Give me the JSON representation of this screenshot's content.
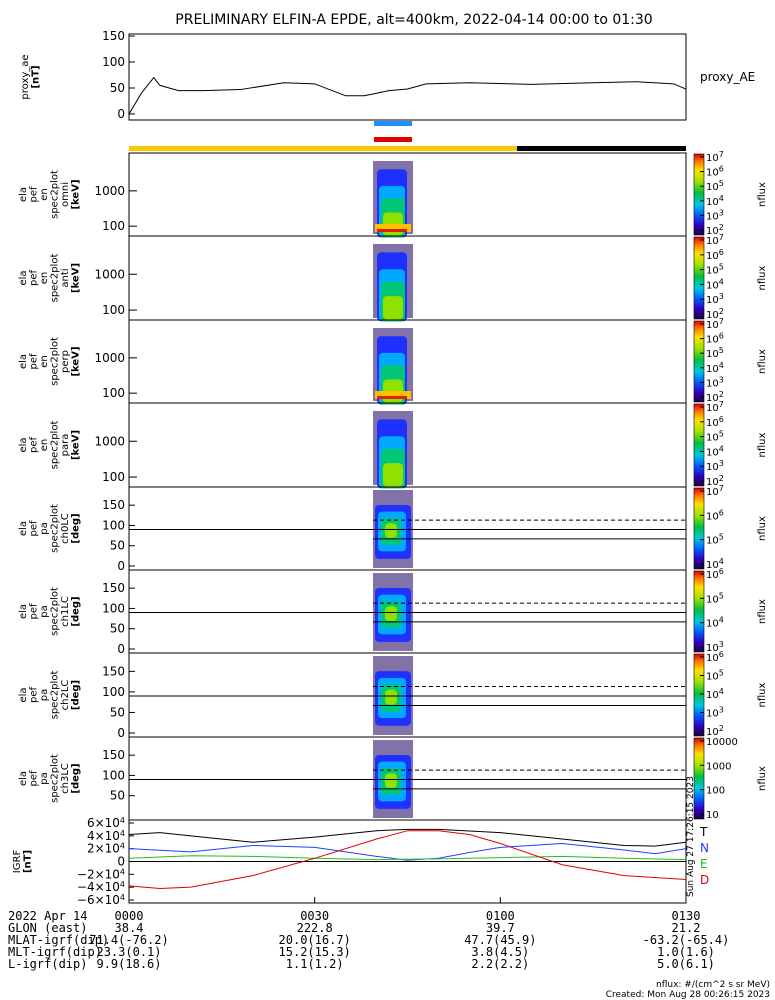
{
  "chart_data": {
    "type": "multi-panel",
    "title": "PRELIMINARY ELFIN-A EPDE, alt=400km, 2022-04-14 00:00 to 01:30",
    "time_range": [
      "00:00",
      "01:30"
    ],
    "x_ticks": [
      "0000",
      "0030",
      "0100",
      "0130"
    ],
    "panels": [
      {
        "id": "proxy_ae",
        "ylabel": [
          "proxy_ae",
          "[nT]"
        ],
        "yticks": [
          "0",
          "50",
          "100",
          "150"
        ],
        "ylim": [
          0,
          150
        ],
        "legend": "proxy_AE",
        "series": {
          "t": [
            0,
            2,
            4,
            5,
            8,
            12,
            18,
            25,
            30,
            35,
            38,
            40,
            42,
            45,
            48,
            55,
            65,
            75,
            82,
            88,
            90
          ],
          "v": [
            0,
            40,
            70,
            55,
            45,
            45,
            47,
            60,
            58,
            35,
            35,
            40,
            45,
            48,
            58,
            60,
            57,
            60,
            62,
            58,
            48
          ]
        }
      },
      {
        "id": "en_omni",
        "ylabel": [
          "ela",
          "pef",
          "en",
          "spec2plot",
          "omni",
          "[keV]"
        ],
        "yticks": [
          "100",
          "1000"
        ],
        "cblabel": "nflux",
        "cbticks": [
          "10^2",
          "10^3",
          "10^4",
          "10^5",
          "10^6",
          "10^7"
        ]
      },
      {
        "id": "en_anti",
        "ylabel": [
          "ela",
          "pef",
          "en",
          "spec2plot",
          "anti",
          "[keV]"
        ],
        "yticks": [
          "100",
          "1000"
        ],
        "cblabel": "nflux",
        "cbticks": [
          "10^2",
          "10^3",
          "10^4",
          "10^5",
          "10^6",
          "10^7"
        ]
      },
      {
        "id": "en_perp",
        "ylabel": [
          "ela",
          "pef",
          "en",
          "spec2plot",
          "perp",
          "[keV]"
        ],
        "yticks": [
          "100",
          "1000"
        ],
        "cblabel": "nflux",
        "cbticks": [
          "10^2",
          "10^3",
          "10^4",
          "10^5",
          "10^6",
          "10^7"
        ]
      },
      {
        "id": "en_para",
        "ylabel": [
          "ela",
          "pef",
          "en",
          "spec2plot",
          "para",
          "[keV]"
        ],
        "yticks": [
          "100",
          "1000"
        ],
        "cblabel": "nflux",
        "cbticks": [
          "10^2",
          "10^3",
          "10^4",
          "10^5",
          "10^6",
          "10^7"
        ]
      },
      {
        "id": "pa_ch0",
        "ylabel": [
          "ela",
          "pef",
          "pa",
          "spec2plot",
          "ch0LC",
          "[deg]"
        ],
        "yticks": [
          "0",
          "50",
          "100",
          "150"
        ],
        "cblabel": "nflux",
        "cbticks": [
          "10^4",
          "10^5",
          "10^6",
          "10^7"
        ]
      },
      {
        "id": "pa_ch1",
        "ylabel": [
          "ela",
          "pef",
          "pa",
          "spec2plot",
          "ch1LC",
          "[deg]"
        ],
        "yticks": [
          "0",
          "50",
          "100",
          "150"
        ],
        "cblabel": "nflux",
        "cbticks": [
          "10^3",
          "10^4",
          "10^5",
          "10^6"
        ]
      },
      {
        "id": "pa_ch2",
        "ylabel": [
          "ela",
          "pef",
          "pa",
          "spec2plot",
          "ch2LC",
          "[deg]"
        ],
        "yticks": [
          "0",
          "50",
          "100",
          "150"
        ],
        "cblabel": "nflux",
        "cbticks": [
          "10^2",
          "10^3",
          "10^4",
          "10^5",
          "10^6"
        ]
      },
      {
        "id": "pa_ch3",
        "ylabel": [
          "ela",
          "pef",
          "pa",
          "spec2plot",
          "ch3LC",
          "[deg]"
        ],
        "yticks": [
          "50",
          "100",
          "150"
        ],
        "cblabel": "nflux",
        "cbticks": [
          "10",
          "100",
          "1000",
          "10000"
        ]
      },
      {
        "id": "igrf",
        "ylabel": [
          "IGRF",
          "[nT]"
        ],
        "yticks": [
          "6×10^4",
          "4×10^4",
          "2×10^4",
          "0",
          "−2×10^4",
          "−4×10^4",
          "−6×10^4"
        ],
        "ylim": [
          -60000,
          60000
        ],
        "legend": [
          {
            "name": "T",
            "color": "#000000"
          },
          {
            "name": "N",
            "color": "#2040ff"
          },
          {
            "name": "E",
            "color": "#20c020"
          },
          {
            "name": "D",
            "color": "#e00000"
          }
        ],
        "series": [
          {
            "name": "T",
            "color": "#000000",
            "t": [
              0,
              5,
              10,
              20,
              30,
              40,
              45,
              50,
              60,
              70,
              80,
              85,
              90
            ],
            "v": [
              42000,
              45000,
              40000,
              30000,
              38000,
              48000,
              50000,
              50000,
              45000,
              35000,
              25000,
              24000,
              30000
            ]
          },
          {
            "name": "N",
            "color": "#2040ff",
            "t": [
              0,
              10,
              20,
              30,
              40,
              45,
              50,
              55,
              60,
              70,
              80,
              85,
              90
            ],
            "v": [
              20000,
              15000,
              25000,
              22000,
              8000,
              2000,
              5000,
              14000,
              22000,
              28000,
              18000,
              12000,
              20000
            ]
          },
          {
            "name": "E",
            "color": "#20c020",
            "t": [
              0,
              10,
              20,
              30,
              40,
              50,
              60,
              70,
              80,
              90
            ],
            "v": [
              5000,
              9000,
              8000,
              5000,
              3000,
              4000,
              6000,
              8000,
              5000,
              3000
            ]
          },
          {
            "name": "D",
            "color": "#e00000",
            "t": [
              0,
              5,
              10,
              20,
              30,
              40,
              45,
              50,
              55,
              60,
              70,
              80,
              90
            ],
            "v": [
              -38000,
              -42000,
              -40000,
              -22000,
              5000,
              35000,
              48000,
              48000,
              42000,
              28000,
              -5000,
              -22000,
              -28000
            ]
          }
        ]
      }
    ],
    "footer": {
      "rows": [
        {
          "label": "2022 Apr 14",
          "values": [
            "0000",
            "0030",
            "0100",
            "0130"
          ]
        },
        {
          "label": "GLON (east)",
          "values": [
            "38.4",
            "222.8",
            "39.7",
            "21.2"
          ]
        },
        {
          "label": "MLAT-igrf(dip)",
          "values": [
            "71.4(-76.2)",
            "20.0(16.7)",
            "47.7(45.9)",
            "-63.2(-65.4)"
          ]
        },
        {
          "label": "MLT-igrf(dip)",
          "values": [
            "23.3(0.1)",
            "15.2(15.3)",
            "3.8(4.5)",
            "1.0(1.6)"
          ]
        },
        {
          "label": "L-igrf(dip)",
          "values": [
            "9.9(18.6)",
            "1.1(1.2)",
            "2.2(2.2)",
            "5.0(6.1)"
          ]
        }
      ],
      "units_note": "nflux: #/(cm^2 s sr MeV)",
      "created": "Created: Mon Aug 28 00:26:15 2023",
      "side_stamp": "Sun Aug 27 17:26:15 2023"
    }
  }
}
